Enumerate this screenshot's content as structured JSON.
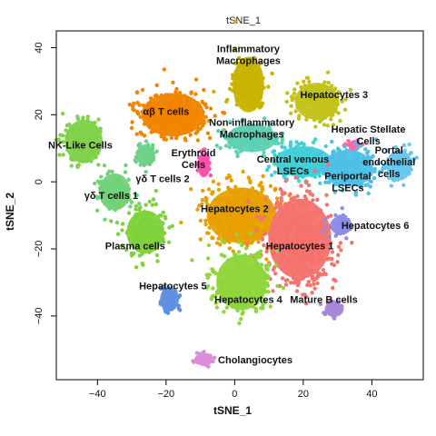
{
  "chart_data": {
    "type": "scatter",
    "title": "tSNE_1",
    "xlabel": "tSNE_1",
    "ylabel": "tSNE_2",
    "xlim": [
      -52,
      55
    ],
    "ylim": [
      -59,
      45
    ],
    "xticks": [
      -40,
      -20,
      0,
      20,
      40
    ],
    "yticks": [
      -40,
      -20,
      0,
      20,
      40
    ],
    "grid": false,
    "legend": "none",
    "clusters": [
      {
        "label": "Inflammatory Macrophages",
        "color": "#c8b400",
        "center": [
          4,
          29
        ],
        "rx": 5,
        "ry": 9,
        "label_lines": [
          "Inflammatory",
          "Macrophages"
        ],
        "label_pos": [
          4,
          38
        ]
      },
      {
        "label": "Hepatocytes 3",
        "color": "#c2c21a",
        "center": [
          24,
          24
        ],
        "rx": 7,
        "ry": 6,
        "label_lines": [
          "Hepatocytes 3"
        ],
        "label_pos": [
          29,
          26
        ]
      },
      {
        "label": "αβ T cells",
        "color": "#f28400",
        "center": [
          -18,
          20
        ],
        "rx": 10,
        "ry": 7,
        "label_lines": [
          "αβ T cells"
        ],
        "label_pos": [
          -20,
          21
        ]
      },
      {
        "label": "Non-inflammatory Macrophages",
        "color": "#5fd1b3",
        "center": [
          5,
          13
        ],
        "rx": 8,
        "ry": 4.5,
        "label_lines": [
          "Non-inflammatory",
          "Macrophages"
        ],
        "label_pos": [
          5,
          16
        ]
      },
      {
        "label": "Hepatic Stellate Cells",
        "color": "#ff66aa",
        "center": [
          35,
          11
        ],
        "rx": 2,
        "ry": 1.5,
        "label_lines": [
          "Hepatic Stellate",
          "Cells"
        ],
        "label_pos": [
          39,
          14
        ]
      },
      {
        "label": "NK-Like Cells",
        "color": "#7fd24a",
        "center": [
          -44,
          12
        ],
        "rx": 6,
        "ry": 7,
        "label_lines": [
          "NK-Like Cells"
        ],
        "label_pos": [
          -45,
          11
        ]
      },
      {
        "label": "Erythroid Cells",
        "color": "#ff4fae",
        "center": [
          -9,
          5
        ],
        "rx": 2,
        "ry": 4,
        "label_lines": [
          "Erythroid",
          "Cells"
        ],
        "label_pos": [
          -12,
          7
        ]
      },
      {
        "label": "Central venous LSECs",
        "color": "#3fd0d8",
        "center": [
          20,
          6
        ],
        "rx": 9,
        "ry": 5,
        "label_lines": [
          "Central venous",
          "LSECs"
        ],
        "label_pos": [
          17,
          5
        ]
      },
      {
        "label": "Periportal LSECs",
        "color": "#4ec0e8",
        "center": [
          33,
          4
        ],
        "rx": 8,
        "ry": 6,
        "label_lines": [
          "Periportal",
          "LSECs"
        ],
        "label_pos": [
          33,
          0
        ]
      },
      {
        "label": "Portal endothelial cells",
        "color": "#66c8f0",
        "center": [
          48,
          5
        ],
        "rx": 4,
        "ry": 5,
        "label_lines": [
          "Portal",
          "endothelial",
          "cells"
        ],
        "label_pos": [
          45,
          6
        ]
      },
      {
        "label": "γδ T cells 2",
        "color": "#6fd08a",
        "center": [
          -26,
          8
        ],
        "rx": 3,
        "ry": 3.5,
        "label_lines": [
          "γδ T cells 2"
        ],
        "label_pos": [
          -21,
          1
        ]
      },
      {
        "label": "γδ T cells 1",
        "color": "#70d27a",
        "center": [
          -35,
          -3
        ],
        "rx": 5,
        "ry": 6,
        "label_lines": [
          "γδ T cells 1"
        ],
        "label_pos": [
          -36,
          -4
        ]
      },
      {
        "label": "Hepatocytes 2",
        "color": "#e8a000",
        "center": [
          2,
          -10
        ],
        "rx": 11,
        "ry": 9,
        "label_lines": [
          "Hepatocytes 2"
        ],
        "label_pos": [
          0,
          -8
        ]
      },
      {
        "label": "Hepatocytes 1",
        "color": "#f4736e",
        "center": [
          19,
          -17
        ],
        "rx": 10,
        "ry": 13,
        "label_lines": [
          "Hepatocytes 1"
        ],
        "label_pos": [
          19,
          -19
        ]
      },
      {
        "label": "Hepatocytes 6",
        "color": "#8d8de8",
        "center": [
          31,
          -13
        ],
        "rx": 3.5,
        "ry": 3,
        "label_lines": [
          "Hepatocytes 6"
        ],
        "label_pos": [
          41,
          -13
        ]
      },
      {
        "label": "Plasma cells",
        "color": "#7fd23c",
        "center": [
          -26,
          -15
        ],
        "rx": 6,
        "ry": 7,
        "label_lines": [
          "Plasma cells"
        ],
        "label_pos": [
          -29,
          -19
        ]
      },
      {
        "label": "Hepatocytes 4",
        "color": "#8ed63a",
        "center": [
          2,
          -30
        ],
        "rx": 8,
        "ry": 9,
        "label_lines": [
          "Hepatocytes 4"
        ],
        "label_pos": [
          4,
          -35
        ]
      },
      {
        "label": "Hepatocytes 5",
        "color": "#5f8fe0",
        "center": [
          -19,
          -35
        ],
        "rx": 3,
        "ry": 4,
        "label_lines": [
          "Hepatocytes 5"
        ],
        "label_pos": [
          -18,
          -31
        ]
      },
      {
        "label": "Mature B cells",
        "color": "#a886d8",
        "center": [
          29,
          -38
        ],
        "rx": 3,
        "ry": 2.5,
        "label_lines": [
          "Mature B cells"
        ],
        "label_pos": [
          26,
          -35
        ]
      },
      {
        "label": "Cholangiocytes",
        "color": "#d98cd8",
        "center": [
          -9,
          -53
        ],
        "rx": 3,
        "ry": 2,
        "label_lines": [
          "Cholangiocytes"
        ],
        "label_pos": [
          6,
          -53
        ]
      }
    ]
  }
}
